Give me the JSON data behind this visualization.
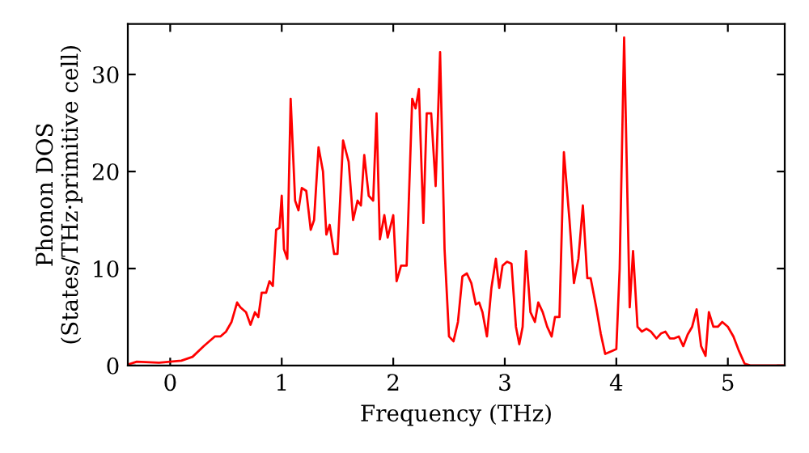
{
  "chart_data": {
    "type": "line",
    "xlabel": "Frequency (THz)",
    "ylabel": "Phonon DOS\n(States/THz·primitive cell)",
    "xlim": [
      -0.38,
      5.51
    ],
    "ylim": [
      0,
      35.2
    ],
    "xticks": [
      0,
      1,
      2,
      3,
      4,
      5
    ],
    "yticks": [
      0,
      10,
      20,
      30
    ],
    "grid": false,
    "legend": false,
    "marker": "none",
    "line_style": "solid",
    "series": [
      {
        "color": "#ff0000",
        "x": [
          -0.38,
          -0.3,
          -0.1,
          0,
          0.1,
          0.2,
          0.3,
          0.4,
          0.45,
          0.5,
          0.55,
          0.6,
          0.63,
          0.68,
          0.72,
          0.76,
          0.79,
          0.82,
          0.86,
          0.89,
          0.92,
          0.95,
          0.98,
          1.0,
          1.02,
          1.05,
          1.08,
          1.12,
          1.15,
          1.18,
          1.22,
          1.26,
          1.29,
          1.33,
          1.37,
          1.4,
          1.43,
          1.47,
          1.5,
          1.55,
          1.6,
          1.64,
          1.68,
          1.71,
          1.74,
          1.78,
          1.82,
          1.85,
          1.88,
          1.92,
          1.95,
          2.0,
          2.03,
          2.07,
          2.12,
          2.17,
          2.2,
          2.23,
          2.27,
          2.3,
          2.34,
          2.38,
          2.42,
          2.46,
          2.5,
          2.54,
          2.58,
          2.62,
          2.66,
          2.7,
          2.74,
          2.77,
          2.8,
          2.84,
          2.88,
          2.92,
          2.95,
          2.98,
          3.02,
          3.06,
          3.1,
          3.13,
          3.16,
          3.19,
          3.23,
          3.27,
          3.3,
          3.34,
          3.38,
          3.42,
          3.45,
          3.49,
          3.53,
          3.58,
          3.62,
          3.66,
          3.7,
          3.74,
          3.77,
          3.82,
          3.86,
          3.9,
          3.96,
          4.0,
          4.03,
          4.07,
          4.12,
          4.15,
          4.19,
          4.23,
          4.27,
          4.31,
          4.36,
          4.4,
          4.44,
          4.48,
          4.52,
          4.56,
          4.6,
          4.64,
          4.68,
          4.72,
          4.76,
          4.8,
          4.83,
          4.87,
          4.91,
          4.95,
          5.0,
          5.05,
          5.1,
          5.15,
          5.2,
          5.51
        ],
        "values": [
          0.1,
          0.4,
          0.3,
          0.4,
          0.5,
          0.9,
          2,
          3,
          3,
          3.5,
          4.5,
          6.5,
          6,
          5.5,
          4.2,
          5.5,
          5,
          7.5,
          7.5,
          8.7,
          8.2,
          14,
          14.2,
          17.5,
          12,
          11,
          27.5,
          17,
          16,
          18.3,
          18,
          14,
          15,
          22.5,
          20,
          13.5,
          14.5,
          11.5,
          11.5,
          23.2,
          21,
          15,
          17,
          16.5,
          21.7,
          17.5,
          17,
          26,
          13,
          15.5,
          13.2,
          15.5,
          8.7,
          10.3,
          10.3,
          27.5,
          26.5,
          28.5,
          14.7,
          26,
          26,
          18.5,
          32.3,
          12,
          3,
          2.5,
          4.5,
          9.2,
          9.5,
          8.5,
          6.3,
          6.5,
          5.5,
          3,
          8,
          11,
          8,
          10.3,
          10.7,
          10.5,
          4,
          2.2,
          4,
          11.8,
          5.5,
          4.5,
          6.5,
          5.5,
          4,
          3,
          5,
          5,
          22,
          15,
          8.5,
          11,
          16.5,
          9,
          9,
          6,
          3.3,
          1.2,
          1.5,
          1.7,
          10,
          33.8,
          6,
          11.8,
          4,
          3.5,
          3.8,
          3.5,
          2.8,
          3.3,
          3.5,
          2.8,
          2.8,
          3,
          2,
          3.2,
          4,
          5.8,
          2,
          1,
          5.5,
          4,
          4,
          4.5,
          4,
          3,
          1.5,
          0.2,
          0,
          0
        ]
      }
    ]
  }
}
